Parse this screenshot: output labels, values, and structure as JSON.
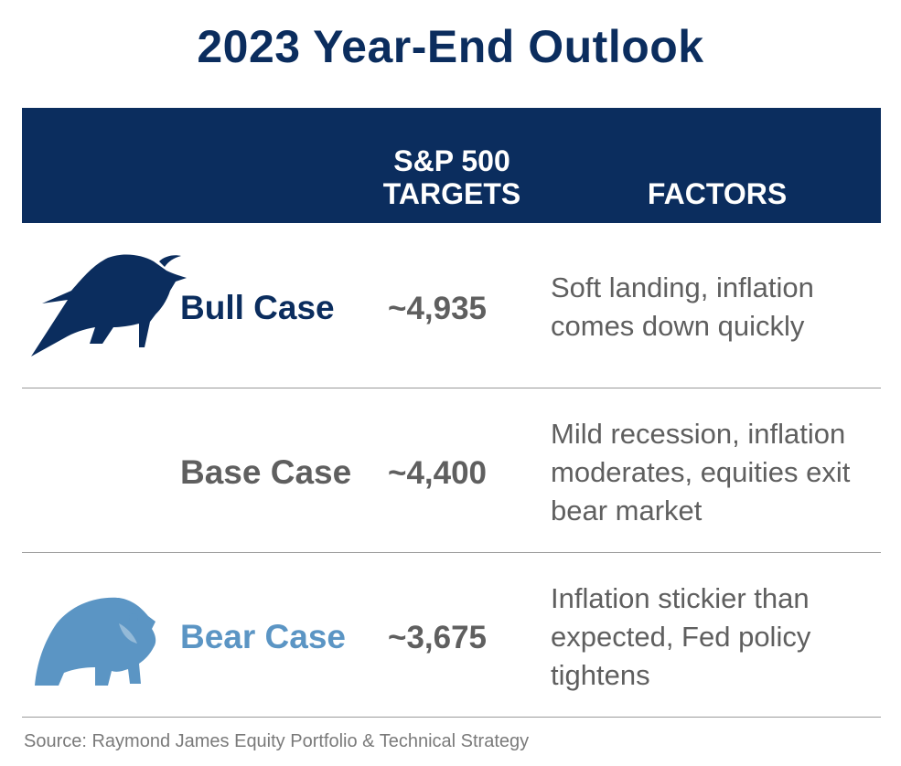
{
  "title": "2023 Year-End Outlook",
  "header": {
    "targets_line1": "S&P 500",
    "targets_line2": "TARGETS",
    "factors": "FACTORS"
  },
  "rows": [
    {
      "label": "Bull Case",
      "target": "~4,935",
      "factor": "Soft landing, inflation comes down quickly",
      "icon": "bull-icon",
      "color": "#0b2d5e"
    },
    {
      "label": "Base Case",
      "target": "~4,400",
      "factor": "Mild recession, inflation moderates, equities exit bear market",
      "color": "#5f5f5f"
    },
    {
      "label": "Bear Case",
      "target": "~3,675",
      "factor": "Inflation stickier than expected, Fed policy tightens",
      "icon": "bear-icon",
      "color": "#5b95c4"
    }
  ],
  "source": "Source: Raymond James Equity Portfolio & Technical Strategy"
}
